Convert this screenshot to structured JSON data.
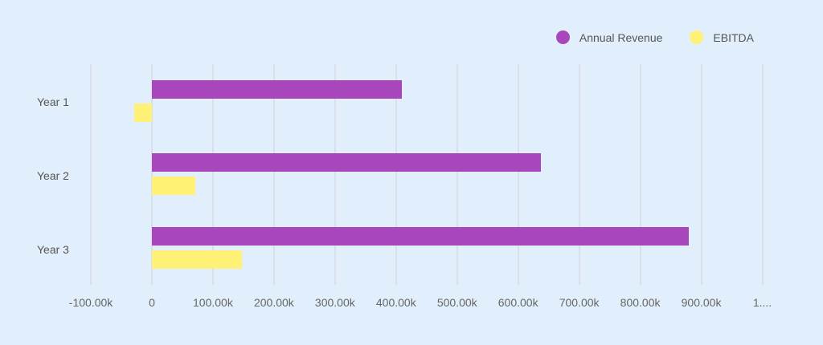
{
  "chart_data": {
    "type": "bar",
    "orientation": "horizontal",
    "title": "",
    "xlabel": "",
    "ylabel": "",
    "categories": [
      "Year 1",
      "Year 2",
      "Year 3"
    ],
    "series": [
      {
        "name": "Annual Revenue",
        "color": "#a847bb",
        "values": [
          410000,
          637000,
          880000
        ]
      },
      {
        "name": "EBITDA",
        "color": "#fff176",
        "values": [
          -29000,
          71000,
          148000
        ]
      }
    ],
    "xlim": [
      -100000,
      1000000
    ],
    "x_ticks": [
      -100000,
      0,
      100000,
      200000,
      300000,
      400000,
      500000,
      600000,
      700000,
      800000,
      900000,
      1000000
    ],
    "x_tick_labels": [
      "-100.00k",
      "0",
      "100.00k",
      "200.00k",
      "300.00k",
      "400.00k",
      "500.00k",
      "600.00k",
      "700.00k",
      "800.00k",
      "900.00k",
      "1...."
    ],
    "grid": true,
    "legend_position": "top-right"
  },
  "legend": {
    "items": [
      {
        "label": "Annual Revenue",
        "color": "#a847bb"
      },
      {
        "label": "EBITDA",
        "color": "#fff176"
      }
    ]
  }
}
